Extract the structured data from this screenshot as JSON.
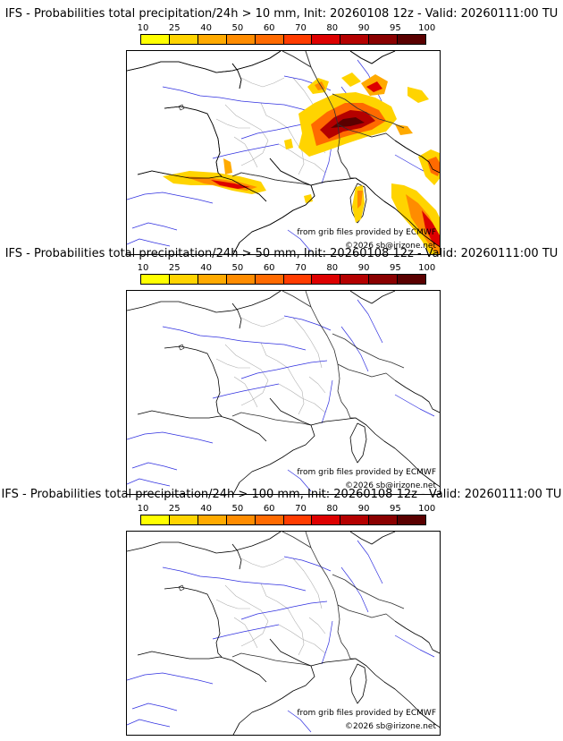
{
  "colorbar": {
    "ticks": [
      "10",
      "25",
      "40",
      "50",
      "60",
      "70",
      "80",
      "90",
      "95",
      "100"
    ],
    "colors": [
      "#ffff00",
      "#ffd400",
      "#ffaa00",
      "#ff8c00",
      "#ff6a00",
      "#ff3c00",
      "#dd0000",
      "#b40000",
      "#8a0000",
      "#5a0000"
    ]
  },
  "panels": [
    {
      "title": "IFS - Probabilities total precipitation/24h > 10 mm, Init: 20260108 12z - Valid: 20260111:00 TU",
      "credit_source": "from grib files provided by ECMWF",
      "credit_copyright": "©2026 sb@irizone.net",
      "has_precip": true
    },
    {
      "title": "IFS - Probabilities total precipitation/24h > 50 mm, Init: 20260108 12z - Valid: 20260111:00 TU",
      "credit_source": "from grib files provided by ECMWF",
      "credit_copyright": "©2026 sb@irizone.net",
      "has_precip": false
    },
    {
      "title": "IFS - Probabilities total precipitation/24h > 100 mm, Init: 20260108 12z - Valid: 20260111:00 TU",
      "credit_source": "from grib files provided by ECMWF",
      "credit_copyright": "©2026 sb@irizone.net",
      "has_precip": false
    }
  ]
}
